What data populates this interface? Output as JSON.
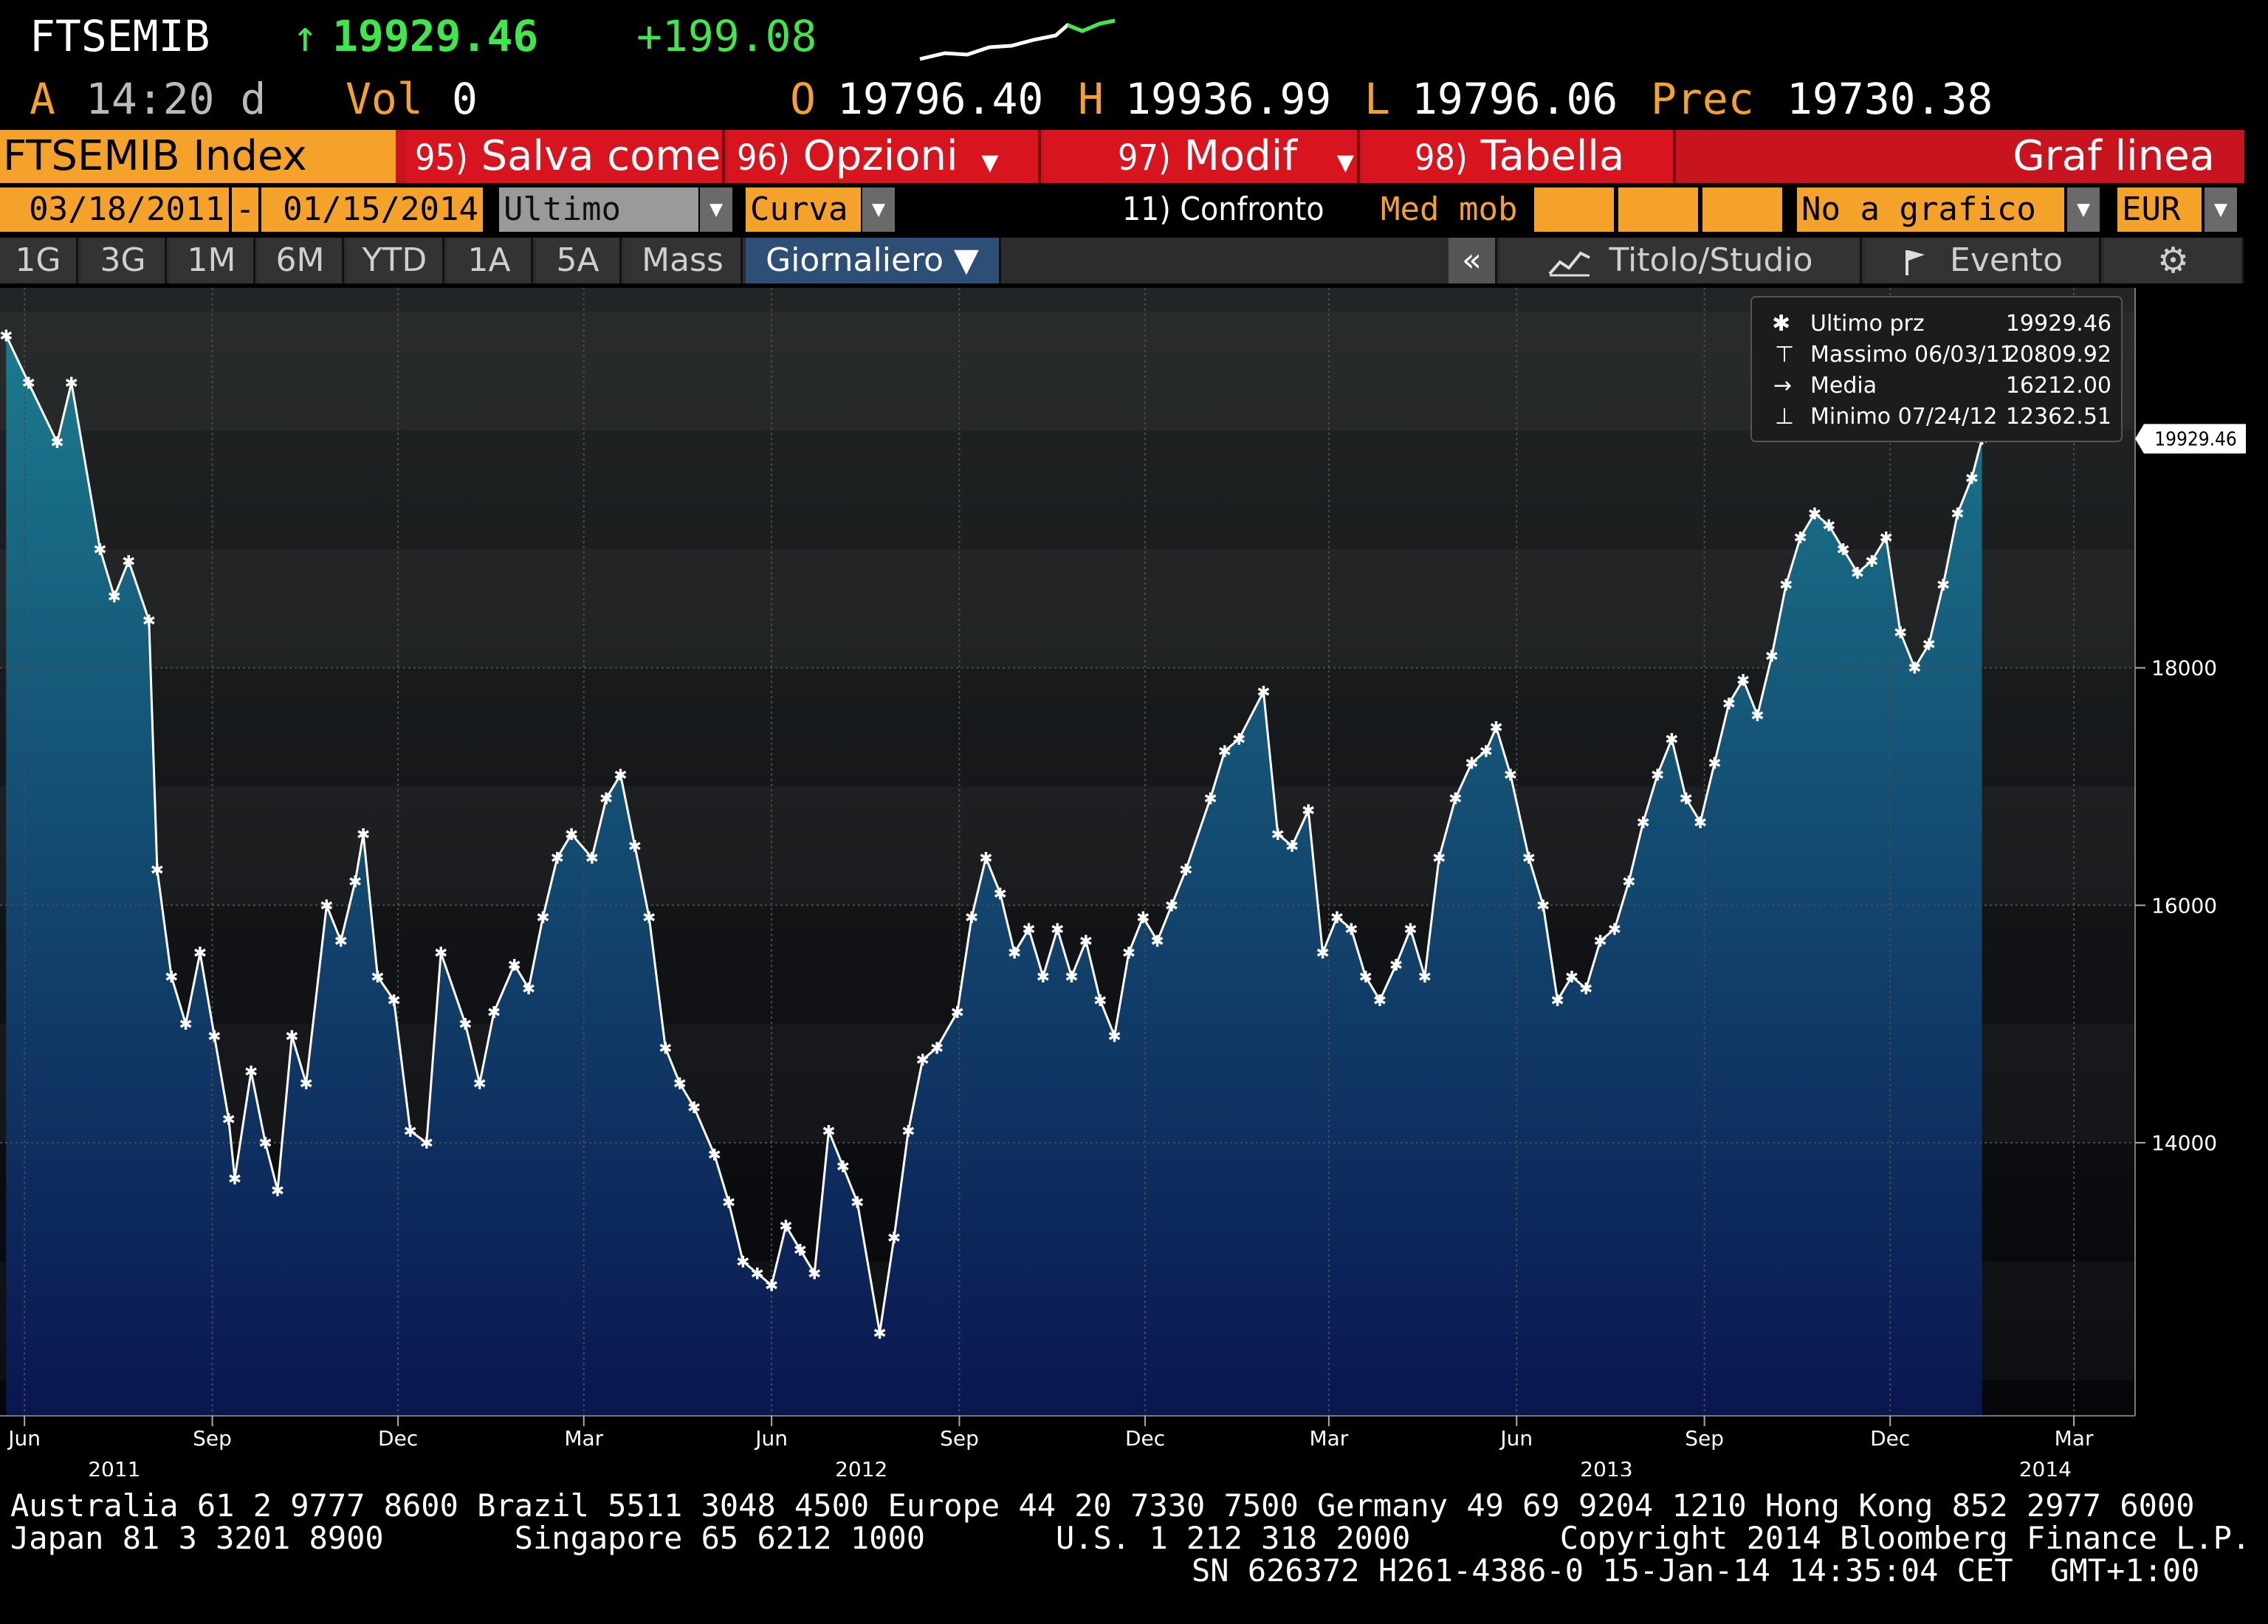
{
  "header": {
    "ticker": "FTSEMIB",
    "arrow": "↑",
    "last": "19929.46",
    "change": "+199.08",
    "time_prefix": "A",
    "time": "14:20 d",
    "vol_label": "Vol",
    "vol_value": "0",
    "open_label": "O",
    "open_value": "19796.40",
    "high_label": "H",
    "high_value": "19936.99",
    "low_label": "L",
    "low_value": "19796.06",
    "prev_label": "Prec",
    "prev_value": "19730.38"
  },
  "menu": {
    "security": "FTSEMIB Index",
    "items": [
      {
        "num": "95)",
        "label": "Salva come"
      },
      {
        "num": "96)",
        "label": "Opzioni"
      },
      {
        "num": "97)",
        "label": "Modif"
      },
      {
        "num": "98)",
        "label": "Tabella"
      }
    ],
    "chart_type": "Graf linea"
  },
  "controls": {
    "start_date": "03/18/2011",
    "dash": "-",
    "end_date": "01/15/2014",
    "field": "Ultimo prz",
    "style": "Curva",
    "compare": "11) Confronto",
    "mov_avg": "Med mob",
    "lower_chart": "No a grafico infe",
    "currency": "EUR"
  },
  "tabs": {
    "ranges": [
      "1G",
      "3G",
      "1M",
      "6M",
      "YTD",
      "1A",
      "5A",
      "Mass"
    ],
    "period": "Giornaliero ▼",
    "collapse": "«",
    "studies": "Titolo/Studio",
    "events": "Evento"
  },
  "legend": {
    "rows": [
      {
        "label": "Ultimo prz",
        "value": "19929.46"
      },
      {
        "label": "Massimo 06/03/11",
        "value": "20809.92"
      },
      {
        "label": "Media",
        "value": "16212.00"
      },
      {
        "label": "Minimo 07/24/12",
        "value": "12362.51"
      }
    ]
  },
  "chart_data": {
    "type": "line",
    "series": [
      {
        "name": "Ultimo prz",
        "points": [
          [
            "2011-05-23",
            20800
          ],
          [
            "2011-06-03",
            20400
          ],
          [
            "2011-06-17",
            19900
          ],
          [
            "2011-06-24",
            20400
          ],
          [
            "2011-07-08",
            19000
          ],
          [
            "2011-07-15",
            18600
          ],
          [
            "2011-07-22",
            18900
          ],
          [
            "2011-08-01",
            18400
          ],
          [
            "2011-08-05",
            16300
          ],
          [
            "2011-08-12",
            15400
          ],
          [
            "2011-08-19",
            15000
          ],
          [
            "2011-08-26",
            15600
          ],
          [
            "2011-09-02",
            14900
          ],
          [
            "2011-09-09",
            14200
          ],
          [
            "2011-09-12",
            13700
          ],
          [
            "2011-09-20",
            14600
          ],
          [
            "2011-09-27",
            14000
          ],
          [
            "2011-10-03",
            13600
          ],
          [
            "2011-10-10",
            14900
          ],
          [
            "2011-10-17",
            14500
          ],
          [
            "2011-10-27",
            16000
          ],
          [
            "2011-11-03",
            15700
          ],
          [
            "2011-11-10",
            16200
          ],
          [
            "2011-11-14",
            16600
          ],
          [
            "2011-11-21",
            15400
          ],
          [
            "2011-11-29",
            15200
          ],
          [
            "2011-12-07",
            14100
          ],
          [
            "2011-12-15",
            14000
          ],
          [
            "2011-12-22",
            15600
          ],
          [
            "2012-01-03",
            15000
          ],
          [
            "2012-01-10",
            14500
          ],
          [
            "2012-01-17",
            15100
          ],
          [
            "2012-01-27",
            15500
          ],
          [
            "2012-02-03",
            15300
          ],
          [
            "2012-02-10",
            15900
          ],
          [
            "2012-02-17",
            16400
          ],
          [
            "2012-02-24",
            16600
          ],
          [
            "2012-03-05",
            16400
          ],
          [
            "2012-03-12",
            16900
          ],
          [
            "2012-03-19",
            17100
          ],
          [
            "2012-03-26",
            16500
          ],
          [
            "2012-04-02",
            15900
          ],
          [
            "2012-04-10",
            14800
          ],
          [
            "2012-04-17",
            14500
          ],
          [
            "2012-04-24",
            14300
          ],
          [
            "2012-05-04",
            13900
          ],
          [
            "2012-05-11",
            13500
          ],
          [
            "2012-05-18",
            13000
          ],
          [
            "2012-05-25",
            12900
          ],
          [
            "2012-06-01",
            12800
          ],
          [
            "2012-06-08",
            13300
          ],
          [
            "2012-06-15",
            13100
          ],
          [
            "2012-06-22",
            12900
          ],
          [
            "2012-06-29",
            14100
          ],
          [
            "2012-07-06",
            13800
          ],
          [
            "2012-07-13",
            13500
          ],
          [
            "2012-07-24",
            12400
          ],
          [
            "2012-07-31",
            13200
          ],
          [
            "2012-08-07",
            14100
          ],
          [
            "2012-08-14",
            14700
          ],
          [
            "2012-08-21",
            14800
          ],
          [
            "2012-08-31",
            15100
          ],
          [
            "2012-09-07",
            15900
          ],
          [
            "2012-09-14",
            16400
          ],
          [
            "2012-09-21",
            16100
          ],
          [
            "2012-09-28",
            15600
          ],
          [
            "2012-10-05",
            15800
          ],
          [
            "2012-10-12",
            15400
          ],
          [
            "2012-10-19",
            15800
          ],
          [
            "2012-10-26",
            15400
          ],
          [
            "2012-11-02",
            15700
          ],
          [
            "2012-11-09",
            15200
          ],
          [
            "2012-11-16",
            14900
          ],
          [
            "2012-11-23",
            15600
          ],
          [
            "2012-11-30",
            15900
          ],
          [
            "2012-12-07",
            15700
          ],
          [
            "2012-12-14",
            16000
          ],
          [
            "2012-12-21",
            16300
          ],
          [
            "2013-01-02",
            16900
          ],
          [
            "2013-01-09",
            17300
          ],
          [
            "2013-01-16",
            17400
          ],
          [
            "2013-01-28",
            17800
          ],
          [
            "2013-02-04",
            16600
          ],
          [
            "2013-02-11",
            16500
          ],
          [
            "2013-02-19",
            16800
          ],
          [
            "2013-02-26",
            15600
          ],
          [
            "2013-03-05",
            15900
          ],
          [
            "2013-03-12",
            15800
          ],
          [
            "2013-03-19",
            15400
          ],
          [
            "2013-03-26",
            15200
          ],
          [
            "2013-04-03",
            15500
          ],
          [
            "2013-04-10",
            15800
          ],
          [
            "2013-04-17",
            15400
          ],
          [
            "2013-04-24",
            16400
          ],
          [
            "2013-05-02",
            16900
          ],
          [
            "2013-05-10",
            17200
          ],
          [
            "2013-05-17",
            17300
          ],
          [
            "2013-05-22",
            17500
          ],
          [
            "2013-05-29",
            17100
          ],
          [
            "2013-06-07",
            16400
          ],
          [
            "2013-06-14",
            16000
          ],
          [
            "2013-06-21",
            15200
          ],
          [
            "2013-06-28",
            15400
          ],
          [
            "2013-07-05",
            15300
          ],
          [
            "2013-07-12",
            15700
          ],
          [
            "2013-07-19",
            15800
          ],
          [
            "2013-07-26",
            16200
          ],
          [
            "2013-08-02",
            16700
          ],
          [
            "2013-08-09",
            17100
          ],
          [
            "2013-08-16",
            17400
          ],
          [
            "2013-08-23",
            16900
          ],
          [
            "2013-08-30",
            16700
          ],
          [
            "2013-09-06",
            17200
          ],
          [
            "2013-09-13",
            17700
          ],
          [
            "2013-09-20",
            17900
          ],
          [
            "2013-09-27",
            17600
          ],
          [
            "2013-10-04",
            18100
          ],
          [
            "2013-10-11",
            18700
          ],
          [
            "2013-10-18",
            19100
          ],
          [
            "2013-10-25",
            19300
          ],
          [
            "2013-11-01",
            19200
          ],
          [
            "2013-11-08",
            19000
          ],
          [
            "2013-11-15",
            18800
          ],
          [
            "2013-11-22",
            18900
          ],
          [
            "2013-11-29",
            19100
          ],
          [
            "2013-12-06",
            18300
          ],
          [
            "2013-12-13",
            18000
          ],
          [
            "2013-12-20",
            18200
          ],
          [
            "2013-12-27",
            18700
          ],
          [
            "2014-01-03",
            19300
          ],
          [
            "2014-01-10",
            19600
          ],
          [
            "2014-01-15",
            19929.46
          ]
        ]
      }
    ],
    "x_ticks": [
      {
        "date": "2011-06-01",
        "label": "Jun"
      },
      {
        "date": "2011-09-01",
        "label": "Sep"
      },
      {
        "date": "2011-12-01",
        "label": "Dec"
      },
      {
        "date": "2012-03-01",
        "label": "Mar"
      },
      {
        "date": "2012-06-01",
        "label": "Jun"
      },
      {
        "date": "2012-09-01",
        "label": "Sep"
      },
      {
        "date": "2012-12-01",
        "label": "Dec"
      },
      {
        "date": "2013-03-01",
        "label": "Mar"
      },
      {
        "date": "2013-06-01",
        "label": "Jun"
      },
      {
        "date": "2013-09-01",
        "label": "Sep"
      },
      {
        "date": "2013-12-01",
        "label": "Dec"
      },
      {
        "date": "2014-03-01",
        "label": "Mar"
      }
    ],
    "year_labels": [
      {
        "date": "2011-07-15",
        "label": "2011"
      },
      {
        "date": "2012-07-15",
        "label": "2012"
      },
      {
        "date": "2013-07-15",
        "label": "2013"
      },
      {
        "date": "2014-02-15",
        "label": "2014"
      }
    ],
    "y_ticks": [
      14000,
      16000,
      18000
    ],
    "last_label": "19929.46",
    "ylim": [
      11700,
      21200
    ],
    "xlim": [
      "2011-05-20",
      "2014-03-31"
    ],
    "grid": true,
    "legend_position": "top-right",
    "y_axis_side": "right",
    "line_color": "#ffffff",
    "fill_top_color": "#1b7a8e",
    "fill_bottom_color": "#0a1650"
  },
  "footer": {
    "line1": "Australia 61 2 9777 8600 Brazil 5511 3048 4500 Europe 44 20 7330 7500 Germany 49 69 9204 1210 Hong Kong 852 2977 6000",
    "line2": "Japan 81 3 3201 8900       Singapore 65 6212 1000       U.S. 1 212 318 2000        Copyright 2014 Bloomberg Finance L.P.",
    "line3": "SN 626372 H261-4386-0 15-Jan-14 14:35:04 CET  GMT+1:00"
  }
}
